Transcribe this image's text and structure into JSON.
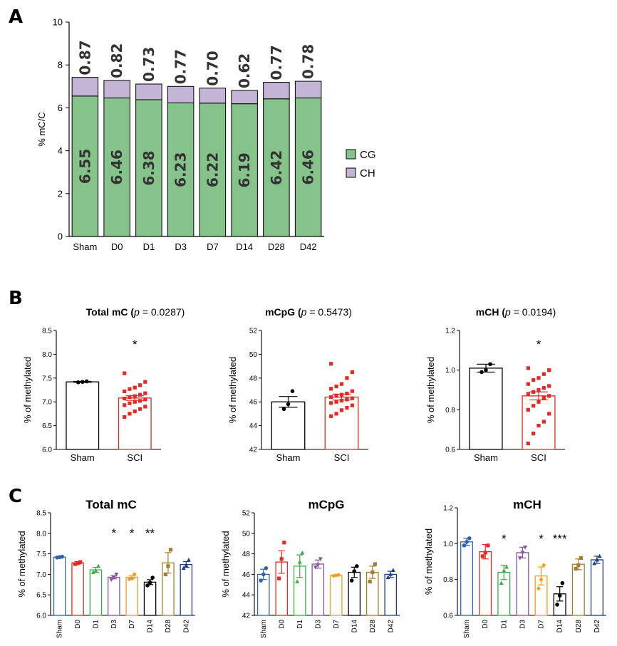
{
  "panels": {
    "A": {
      "letter": "A",
      "ylabel": "% mC/C",
      "categories": [
        "Sham",
        "D0",
        "D1",
        "D3",
        "D7",
        "D14",
        "D28",
        "D42"
      ],
      "legend": [
        {
          "label": "CG",
          "color": "#86c38a"
        },
        {
          "label": "CH",
          "color": "#c4b5d6"
        }
      ]
    },
    "B": {
      "letter": "B",
      "ylabel": "% of methylated",
      "charts": [
        {
          "title_main": "Total mC",
          "title_p": "p",
          "title_tail": " = 0.0287)"
        },
        {
          "title_main": "mCpG",
          "title_p": "p",
          "title_tail": " = 0.5473)"
        },
        {
          "title_main": "mCH",
          "title_p": "p",
          "title_tail": " = 0.0194)"
        }
      ],
      "categories": [
        "Sham",
        "SCI"
      ]
    },
    "C": {
      "letter": "C",
      "ylabel": "% of methylated",
      "titles": [
        "Total mC",
        "mCpG",
        "mCH"
      ],
      "categories": [
        "Sham",
        "D0",
        "D1",
        "D3",
        "D7",
        "D14",
        "D28",
        "D42"
      ],
      "colors": [
        "#2f64ad",
        "#e02a22",
        "#3aad48",
        "#8b52a1",
        "#f39c1f",
        "#000000",
        "#a47d33",
        "#1f3c88"
      ]
    }
  },
  "chart_data": [
    {
      "type": "bar",
      "stacked": true,
      "categories": [
        "Sham",
        "D0",
        "D1",
        "D3",
        "D7",
        "D14",
        "D28",
        "D42"
      ],
      "series": [
        {
          "name": "CG",
          "values": [
            6.55,
            6.46,
            6.38,
            6.23,
            6.22,
            6.19,
            6.42,
            6.46
          ],
          "labels": [
            "6.55",
            "6.46",
            "6.38",
            "6.23",
            "6.22",
            "6.19",
            "6.42",
            "6.46"
          ]
        },
        {
          "name": "CH",
          "values": [
            0.87,
            0.82,
            0.73,
            0.77,
            0.7,
            0.62,
            0.77,
            0.78
          ],
          "labels": [
            "0.87",
            "0.82",
            "0.73",
            "0.77",
            "0.70",
            "0.62",
            "0.77",
            "0.78"
          ]
        }
      ],
      "ylim": [
        0,
        10
      ],
      "yticks": [
        "0",
        "2",
        "4",
        "6",
        "8",
        "10"
      ],
      "ylabel": "% mC/C",
      "legend_position": "right"
    },
    {
      "type": "bar",
      "categories": [
        "Sham",
        "SCI"
      ],
      "values": [
        7.42,
        7.08
      ],
      "errors": [
        0.01,
        0.05
      ],
      "points": [
        [
          7.41,
          7.42,
          7.43
        ],
        [
          6.68,
          6.75,
          6.8,
          6.85,
          6.9,
          6.93,
          6.97,
          7.0,
          7.02,
          7.05,
          7.07,
          7.1,
          7.12,
          7.15,
          7.18,
          7.22,
          7.27,
          7.3,
          7.35,
          7.42,
          7.6
        ]
      ],
      "ylim": [
        6.0,
        8.5
      ],
      "yticks": [
        "6.0",
        "6.5",
        "7.0",
        "7.5",
        "8.0",
        "8.5"
      ],
      "ylabel": "% of methylated",
      "significance": [
        "",
        "*"
      ]
    },
    {
      "type": "bar",
      "categories": [
        "Sham",
        "SCI"
      ],
      "values": [
        46.0,
        46.4
      ],
      "errors": [
        0.45,
        0.25
      ],
      "points": [
        [
          45.4,
          45.8,
          46.9
        ],
        [
          44.8,
          45.0,
          45.3,
          45.5,
          45.7,
          45.9,
          46.0,
          46.1,
          46.2,
          46.3,
          46.4,
          46.5,
          46.6,
          46.7,
          46.9,
          47.1,
          47.3,
          47.5,
          48.0,
          48.5,
          49.2
        ]
      ],
      "ylim": [
        42,
        52
      ],
      "yticks": [
        "42",
        "44",
        "46",
        "48",
        "50",
        "52"
      ],
      "ylabel": "% of methylated",
      "significance": [
        "",
        ""
      ]
    },
    {
      "type": "bar",
      "categories": [
        "Sham",
        "SCI"
      ],
      "values": [
        1.01,
        0.87
      ],
      "errors": [
        0.02,
        0.02
      ],
      "points": [
        [
          0.99,
          1.0,
          1.03
        ],
        [
          0.63,
          0.68,
          0.72,
          0.74,
          0.78,
          0.8,
          0.82,
          0.84,
          0.86,
          0.87,
          0.88,
          0.89,
          0.9,
          0.91,
          0.92,
          0.93,
          0.95,
          0.96,
          0.98,
          1.0,
          1.01
        ]
      ],
      "ylim": [
        0.6,
        1.2
      ],
      "yticks": [
        "0.6",
        "0.8",
        "1.0",
        "1.2"
      ],
      "ylabel": "% of methylated",
      "significance": [
        "",
        "*"
      ]
    },
    {
      "type": "bar",
      "categories": [
        "Sham",
        "D0",
        "D1",
        "D3",
        "D7",
        "D14",
        "D28",
        "D42"
      ],
      "values": [
        7.42,
        7.28,
        7.11,
        6.93,
        6.93,
        6.81,
        7.28,
        7.24
      ],
      "errors": [
        0.01,
        0.03,
        0.06,
        0.04,
        0.04,
        0.06,
        0.25,
        0.07
      ],
      "points": [
        [
          7.41,
          7.42,
          7.43
        ],
        [
          7.25,
          7.27,
          7.3
        ],
        [
          7.05,
          7.08,
          7.2
        ],
        [
          6.87,
          6.92,
          7.0
        ],
        [
          6.88,
          6.9,
          7.0
        ],
        [
          6.73,
          6.8,
          6.92
        ],
        [
          7.0,
          7.2,
          7.6
        ],
        [
          7.15,
          7.22,
          7.35
        ]
      ],
      "ylim": [
        6.0,
        8.5
      ],
      "yticks": [
        "6.0",
        "6.5",
        "7.0",
        "7.5",
        "8.0",
        "8.5"
      ],
      "ylabel": "% of methylated",
      "significance": [
        "",
        "",
        "",
        "*",
        "*",
        "**",
        "",
        ""
      ]
    },
    {
      "type": "bar",
      "categories": [
        "Sham",
        "D0",
        "D1",
        "D3",
        "D7",
        "D14",
        "D28",
        "D42"
      ],
      "values": [
        46.0,
        47.2,
        46.8,
        47.0,
        45.9,
        46.2,
        46.2,
        46.0
      ],
      "errors": [
        0.5,
        1.1,
        1.1,
        0.4,
        0.05,
        0.5,
        0.6,
        0.3
      ],
      "points": [
        [
          45.4,
          46.0,
          46.6
        ],
        [
          45.6,
          47.5,
          49.1
        ],
        [
          45.3,
          47.2,
          48.1
        ],
        [
          46.7,
          46.9,
          47.5
        ],
        [
          45.85,
          45.9,
          45.95
        ],
        [
          45.4,
          46.3,
          46.8
        ],
        [
          45.3,
          46.2,
          47.0
        ],
        [
          45.7,
          46.0,
          46.4
        ]
      ],
      "ylim": [
        42,
        52
      ],
      "yticks": [
        "42",
        "44",
        "46",
        "48",
        "50",
        "52"
      ],
      "ylabel": "% of methylated",
      "significance": [
        "",
        "",
        "",
        "",
        "",
        "",
        "",
        ""
      ]
    },
    {
      "type": "bar",
      "categories": [
        "Sham",
        "D0",
        "D1",
        "D3",
        "D7",
        "D14",
        "D28",
        "D42"
      ],
      "values": [
        1.01,
        0.955,
        0.84,
        0.95,
        0.82,
        0.72,
        0.885,
        0.91
      ],
      "errors": [
        0.02,
        0.04,
        0.04,
        0.03,
        0.05,
        0.04,
        0.03,
        0.02
      ],
      "points": [
        [
          0.99,
          1.01,
          1.03
        ],
        [
          0.93,
          0.95,
          0.99
        ],
        [
          0.78,
          0.85,
          0.87
        ],
        [
          0.92,
          0.95,
          0.98
        ],
        [
          0.75,
          0.8,
          0.88
        ],
        [
          0.66,
          0.71,
          0.78
        ],
        [
          0.86,
          0.88,
          0.92
        ],
        [
          0.89,
          0.91,
          0.93
        ]
      ],
      "ylim": [
        0.6,
        1.2
      ],
      "yticks": [
        "0.6",
        "0.8",
        "1.0",
        "1.2"
      ],
      "ylabel": "% of methylated",
      "significance": [
        "",
        "",
        "*",
        "",
        "*",
        "***",
        "",
        ""
      ]
    }
  ]
}
